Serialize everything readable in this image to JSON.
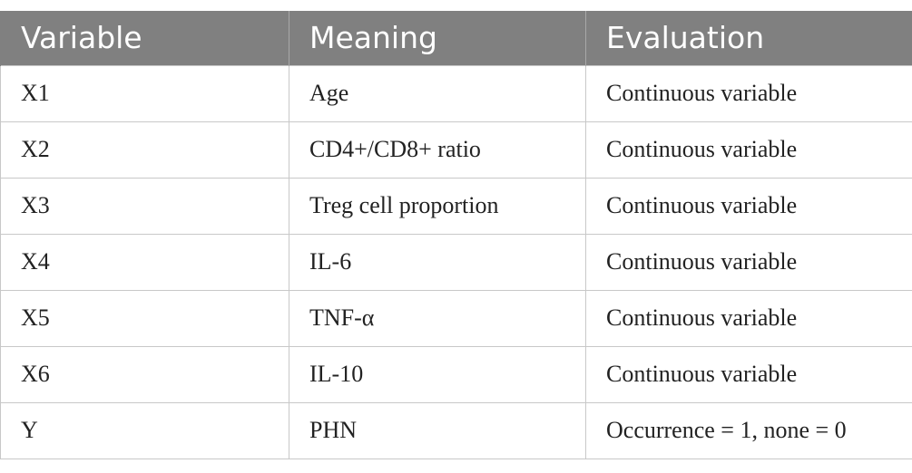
{
  "table": {
    "headers": [
      "Variable",
      "Meaning",
      "Evaluation"
    ],
    "rows": [
      [
        "X1",
        "Age",
        "Continuous variable"
      ],
      [
        "X2",
        "CD4+/CD8+ ratio",
        "Continuous variable"
      ],
      [
        "X3",
        "Treg cell proportion",
        "Continuous variable"
      ],
      [
        "X4",
        "IL-6",
        "Continuous variable"
      ],
      [
        "X5",
        "TNF-α",
        "Continuous variable"
      ],
      [
        "X6",
        "IL-10",
        "Continuous variable"
      ],
      [
        "Y",
        "PHN",
        "Occurrence = 1, none = 0"
      ]
    ]
  },
  "colors": {
    "header_bg": "#808080",
    "header_text": "#ffffff",
    "grid": "#c8c8c8"
  }
}
